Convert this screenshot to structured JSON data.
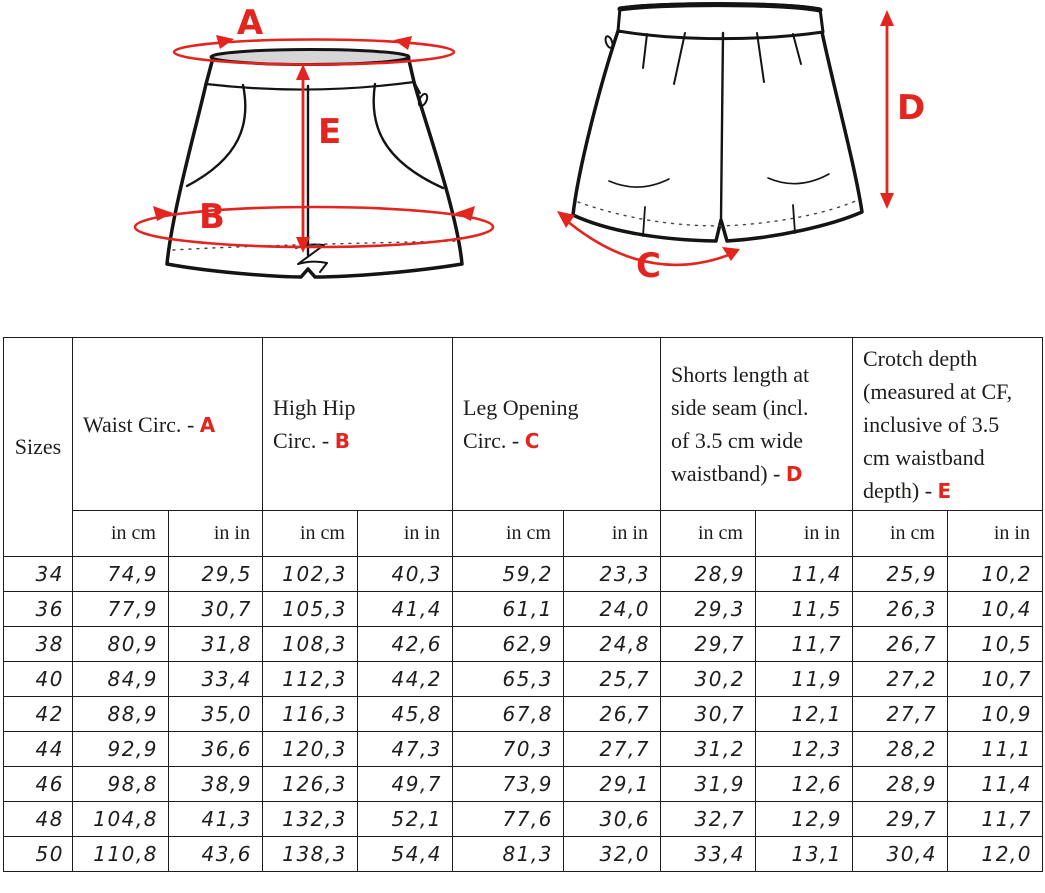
{
  "colors": {
    "accent_red": "#e3251f",
    "line_black": "#141414"
  },
  "diagram": {
    "front_view": "shorts front view technical drawing",
    "back_view": "shorts back view technical drawing",
    "labels": {
      "a": "A",
      "b": "B",
      "c": "C",
      "d": "D",
      "e": "E"
    }
  },
  "table": {
    "sizes_header": "Sizes",
    "dash": "-",
    "unit_cm": "in cm",
    "unit_in": "in in",
    "columns": [
      {
        "label": "Waist Circ.",
        "letter": "A"
      },
      {
        "label": "High Hip Circ.",
        "letter": "B"
      },
      {
        "label": "Leg Opening Circ.",
        "letter": "C"
      },
      {
        "label": "Shorts length at side seam (incl. of 3.5 cm wide waistband)",
        "letter": "D"
      },
      {
        "label": "Crotch depth (measured at CF, inclusive of 3.5 cm waistband depth)",
        "letter": "E"
      }
    ],
    "rows": [
      {
        "size": "34",
        "values": [
          "74,9",
          "29,5",
          "102,3",
          "40,3",
          "59,2",
          "23,3",
          "28,9",
          "11,4",
          "25,9",
          "10,2"
        ]
      },
      {
        "size": "36",
        "values": [
          "77,9",
          "30,7",
          "105,3",
          "41,4",
          "61,1",
          "24,0",
          "29,3",
          "11,5",
          "26,3",
          "10,4"
        ]
      },
      {
        "size": "38",
        "values": [
          "80,9",
          "31,8",
          "108,3",
          "42,6",
          "62,9",
          "24,8",
          "29,7",
          "11,7",
          "26,7",
          "10,5"
        ]
      },
      {
        "size": "40",
        "values": [
          "84,9",
          "33,4",
          "112,3",
          "44,2",
          "65,3",
          "25,7",
          "30,2",
          "11,9",
          "27,2",
          "10,7"
        ]
      },
      {
        "size": "42",
        "values": [
          "88,9",
          "35,0",
          "116,3",
          "45,8",
          "67,8",
          "26,7",
          "30,7",
          "12,1",
          "27,7",
          "10,9"
        ]
      },
      {
        "size": "44",
        "values": [
          "92,9",
          "36,6",
          "120,3",
          "47,3",
          "70,3",
          "27,7",
          "31,2",
          "12,3",
          "28,2",
          "11,1"
        ]
      },
      {
        "size": "46",
        "values": [
          "98,8",
          "38,9",
          "126,3",
          "49,7",
          "73,9",
          "29,1",
          "31,9",
          "12,6",
          "28,9",
          "11,4"
        ]
      },
      {
        "size": "48",
        "values": [
          "104,8",
          "41,3",
          "132,3",
          "52,1",
          "77,6",
          "30,6",
          "32,7",
          "12,9",
          "29,7",
          "11,7"
        ]
      },
      {
        "size": "50",
        "values": [
          "110,8",
          "43,6",
          "138,3",
          "54,4",
          "81,3",
          "32,0",
          "33,4",
          "13,1",
          "30,4",
          "12,0"
        ]
      }
    ]
  },
  "chart_data": {
    "type": "table",
    "title": "Shorts size chart with measurement diagram (A waist, B high hip, C leg opening, D side length, E crotch depth)",
    "columns": [
      "Sizes",
      "Waist Circ. A (cm)",
      "Waist Circ. A (in)",
      "High Hip Circ. B (cm)",
      "High Hip Circ. B (in)",
      "Leg Opening Circ. C (cm)",
      "Leg Opening Circ. C (in)",
      "Shorts length at side seam incl. 3.5 cm waistband D (cm)",
      "Shorts length D (in)",
      "Crotch depth at CF incl. 3.5 cm waistband E (cm)",
      "Crotch depth E (in)"
    ],
    "rows": [
      [
        34,
        74.9,
        29.5,
        102.3,
        40.3,
        59.2,
        23.3,
        28.9,
        11.4,
        25.9,
        10.2
      ],
      [
        36,
        77.9,
        30.7,
        105.3,
        41.4,
        61.1,
        24.0,
        29.3,
        11.5,
        26.3,
        10.4
      ],
      [
        38,
        80.9,
        31.8,
        108.3,
        42.6,
        62.9,
        24.8,
        29.7,
        11.7,
        26.7,
        10.5
      ],
      [
        40,
        84.9,
        33.4,
        112.3,
        44.2,
        65.3,
        25.7,
        30.2,
        11.9,
        27.2,
        10.7
      ],
      [
        42,
        88.9,
        35.0,
        116.3,
        45.8,
        67.8,
        26.7,
        30.7,
        12.1,
        27.7,
        10.9
      ],
      [
        44,
        92.9,
        36.6,
        120.3,
        47.3,
        70.3,
        27.7,
        31.2,
        12.3,
        28.2,
        11.1
      ],
      [
        46,
        98.8,
        38.9,
        126.3,
        49.7,
        73.9,
        29.1,
        31.9,
        12.6,
        28.9,
        11.4
      ],
      [
        48,
        104.8,
        41.3,
        132.3,
        52.1,
        77.6,
        30.6,
        32.7,
        12.9,
        29.7,
        11.7
      ],
      [
        50,
        110.8,
        43.6,
        138.3,
        54.4,
        81.3,
        32.0,
        33.4,
        13.1,
        30.4,
        12.0
      ]
    ]
  }
}
